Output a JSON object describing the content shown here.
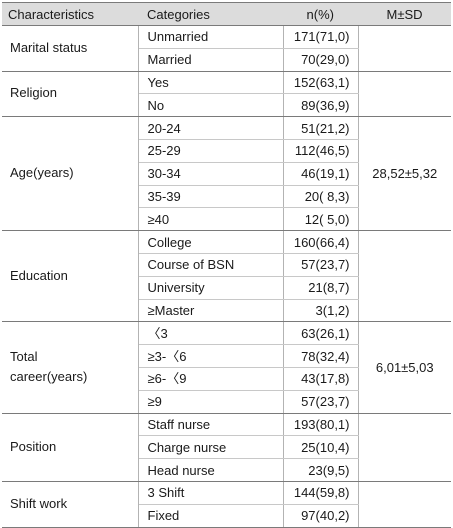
{
  "headers": {
    "characteristics": "Characteristics",
    "categories": "Categories",
    "n": "n(%)",
    "msd": "M±SD"
  },
  "groups": [
    {
      "name": "Marital status",
      "msd": "",
      "rows": [
        {
          "category": "Unmarried",
          "n": "171(71,0)"
        },
        {
          "category": "Married",
          "n": "70(29,0)"
        }
      ]
    },
    {
      "name": "Religion",
      "msd": "",
      "rows": [
        {
          "category": "Yes",
          "n": "152(63,1)"
        },
        {
          "category": "No",
          "n": "89(36,9)"
        }
      ]
    },
    {
      "name": "Age(years)",
      "msd": "28,52±5,32",
      "rows": [
        {
          "category": "20-24",
          "n": "51(21,2)"
        },
        {
          "category": "25-29",
          "n": "112(46,5)"
        },
        {
          "category": "30-34",
          "n": "46(19,1)"
        },
        {
          "category": "35-39",
          "n": "20( 8,3)"
        },
        {
          "category": "≥40",
          "n": "12( 5,0)"
        }
      ]
    },
    {
      "name": "Education",
      "msd": "",
      "rows": [
        {
          "category": "College",
          "n": "160(66,4)"
        },
        {
          "category": "Course of BSN",
          "n": "57(23,7)"
        },
        {
          "category": "University",
          "n": "21(8,7)"
        },
        {
          "category": "≥Master",
          "n": "3(1,2)"
        }
      ]
    },
    {
      "name": "Total\ncareer(years)",
      "msd": "6,01±5,03",
      "rows": [
        {
          "category": "〈3",
          "n": "63(26,1)"
        },
        {
          "category": "≥3-〈6",
          "n": "78(32,4)"
        },
        {
          "category": "≥6-〈9",
          "n": "43(17,8)"
        },
        {
          "category": "≥9",
          "n": "57(23,7)"
        }
      ]
    },
    {
      "name": "Position",
      "msd": "",
      "rows": [
        {
          "category": "Staff nurse",
          "n": "193(80,1)"
        },
        {
          "category": "Charge nurse",
          "n": "25(10,4)"
        },
        {
          "category": "Head nurse",
          "n": "23(9,5)"
        }
      ]
    },
    {
      "name": "Shift work",
      "msd": "",
      "rows": [
        {
          "category": "3 Shift",
          "n": "144(59,8)"
        },
        {
          "category": "Fixed",
          "n": "97(40,2)"
        }
      ]
    }
  ]
}
